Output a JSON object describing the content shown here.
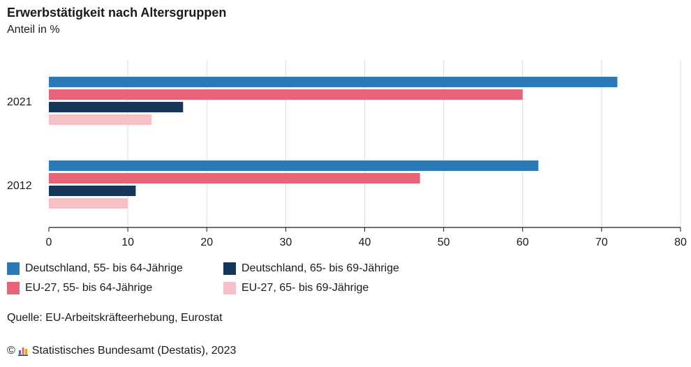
{
  "title": "Erwerbstätigkeit nach Altersgruppen",
  "subtitle": "Anteil in %",
  "source": "Quelle: EU-Arbeitskräfteerhebung, Eurostat",
  "footer": {
    "copyright_symbol": "©",
    "text": "Statistisches Bundesamt (Destatis), 2023"
  },
  "chart_data": {
    "type": "bar",
    "orientation": "horizontal",
    "categories": [
      "2021",
      "2012"
    ],
    "series": [
      {
        "name": "Deutschland, 55- bis 64-Jährige",
        "color": "#2a7ab9",
        "values": [
          72,
          62
        ]
      },
      {
        "name": "EU-27, 55- bis 64-Jährige",
        "color": "#e8647a",
        "values": [
          60,
          47
        ]
      },
      {
        "name": "Deutschland, 65- bis 69-Jährige",
        "color": "#16375a",
        "values": [
          17,
          11
        ]
      },
      {
        "name": "EU-27, 65- bis 69-Jährige",
        "color": "#f6c0c7",
        "values": [
          13,
          10
        ]
      }
    ],
    "xlim": [
      0,
      80
    ],
    "xticks": [
      0,
      10,
      20,
      30,
      40,
      50,
      60,
      70,
      80
    ],
    "grid": true,
    "legend_position": "bottom"
  }
}
